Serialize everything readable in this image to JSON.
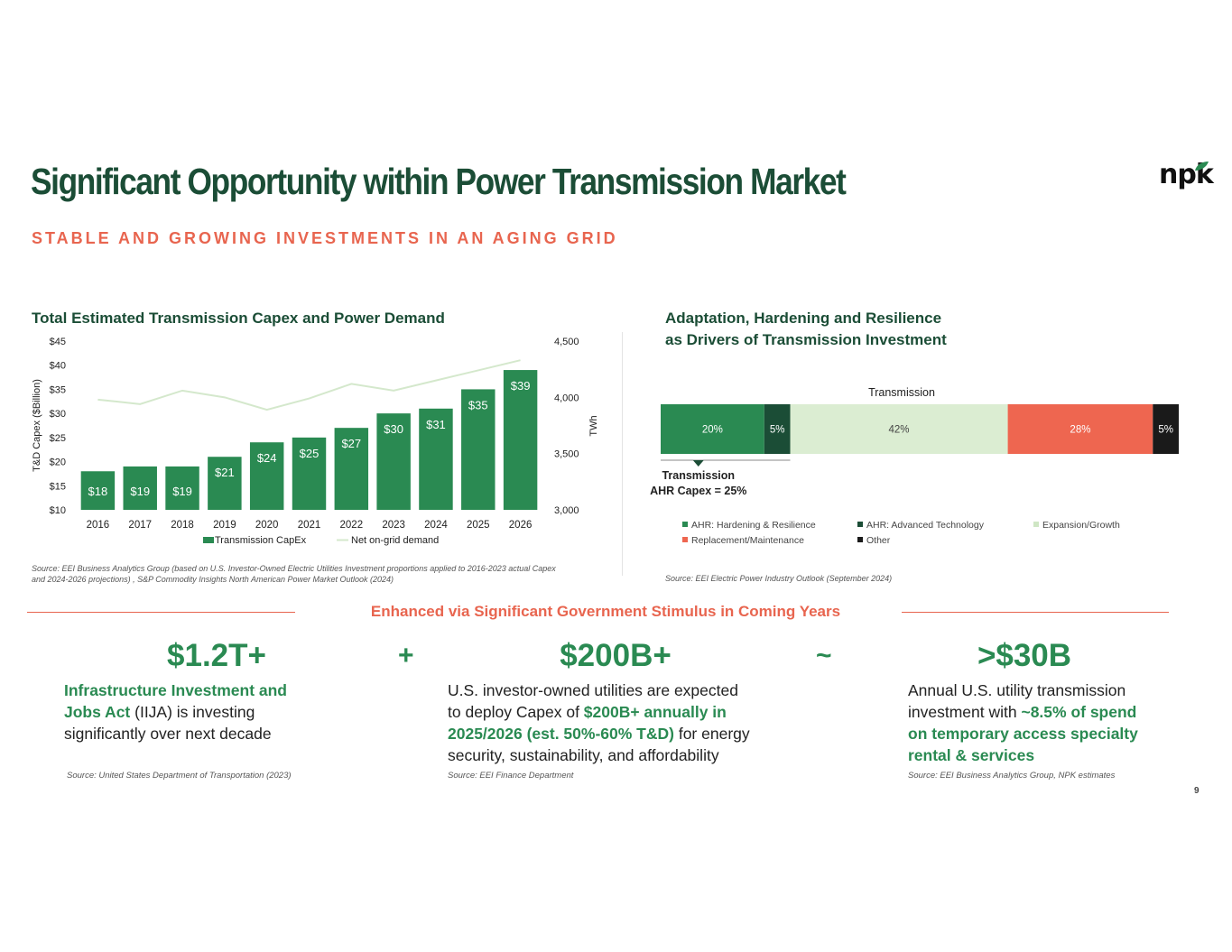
{
  "header": {
    "title": "Significant Opportunity within Power Transmission Market",
    "subtitle": "STABLE AND GROWING INVESTMENTS IN AN AGING GRID",
    "logo_text": "npk"
  },
  "left_chart": {
    "title": "Total Estimated Transmission Capex and Power Demand",
    "source": [
      "Source: EEI Business Analytics Group (based on U.S. Investor-Owned Electric Utilities Investment proportions applied to 2016-2023 actual Capex",
      "and 2024-2026 projections) , S&P Commodity Insights North American Power Market Outlook (2024)"
    ]
  },
  "right_chart": {
    "title_line1": "Adaptation, Hardening and Resilience",
    "title_line2": "as Drivers of Transmission Investment",
    "source": "Source: EEI Electric Power Industry Outlook (September 2024)"
  },
  "chart_data": [
    {
      "type": "bar",
      "title": "Total Estimated Transmission Capex and Power Demand",
      "categories": [
        "2016",
        "2017",
        "2018",
        "2019",
        "2020",
        "2021",
        "2022",
        "2023",
        "2024",
        "2025",
        "2026"
      ],
      "series": [
        {
          "name": "Transmission CapEx",
          "type": "bar",
          "axis": "left",
          "values": [
            18,
            19,
            19,
            21,
            24,
            25,
            27,
            30,
            31,
            35,
            39
          ],
          "labels": [
            "$18",
            "$19",
            "$19",
            "$21",
            "$24",
            "$25",
            "$27",
            "$30",
            "$31",
            "$35",
            "$39"
          ],
          "color": "#2a8a52"
        },
        {
          "name": "Net on-grid demand",
          "type": "line",
          "axis": "right",
          "values": [
            3980,
            3940,
            4060,
            4000,
            3890,
            3990,
            4120,
            4060,
            4150,
            4240,
            4330
          ],
          "color": "#d4e8cc"
        }
      ],
      "ylabel": "T&D Capex ($Billion)",
      "ylim": [
        10,
        45
      ],
      "yticks": [
        "$10",
        "$15",
        "$20",
        "$25",
        "$30",
        "$35",
        "$40",
        "$45"
      ],
      "y2label": "TWh",
      "y2lim": [
        3000,
        4500
      ],
      "y2ticks": [
        "3,000",
        "3,500",
        "4,000",
        "4,500"
      ],
      "legend_position": "bottom",
      "grid": false
    },
    {
      "type": "bar",
      "subtype": "stacked-100",
      "title": "Adaptation, Hardening and Resilience as Drivers of Transmission Investment",
      "categories": [
        "Transmission"
      ],
      "series": [
        {
          "name": "AHR: Hardening & Resilience",
          "values": [
            20
          ],
          "label": "20%",
          "color": "#2a8a52"
        },
        {
          "name": "AHR: Advanced Technology",
          "values": [
            5
          ],
          "label": "5%",
          "color": "#1b4d36"
        },
        {
          "name": "Expansion/Growth",
          "values": [
            42
          ],
          "label": "42%",
          "color": "#dbedd2"
        },
        {
          "name": "Replacement/Maintenance",
          "values": [
            28
          ],
          "label": "28%",
          "color": "#ee6650"
        },
        {
          "name": "Other",
          "values": [
            5
          ],
          "label": "5%",
          "color": "#1a1a1a"
        }
      ],
      "annotation": {
        "line1": "Transmission",
        "line2": "AHR Capex = 25%"
      },
      "legend_position": "bottom"
    }
  ],
  "stimulus": {
    "title": "Enhanced via Significant Government Stimulus in Coming Years",
    "plus": "+",
    "tilde": "~",
    "items": [
      {
        "value": "$1.2T+",
        "lines": [
          [
            {
              "t": "Infrastructure Investment and",
              "hl": true
            }
          ],
          [
            {
              "t": "Jobs Act",
              "hl": true
            },
            {
              "t": " (IIJA) is investing",
              "hl": false
            }
          ],
          [
            {
              "t": "significantly over next decade",
              "hl": false
            }
          ]
        ],
        "source": "Source: United States Department of Transportation (2023)"
      },
      {
        "value": "$200B+",
        "lines": [
          [
            {
              "t": "U.S. investor-owned utilities are expected",
              "hl": false
            }
          ],
          [
            {
              "t": "to deploy Capex of ",
              "hl": false
            },
            {
              "t": "$200B+ annually in",
              "hl": true
            }
          ],
          [
            {
              "t": "2025/2026 (est. 50%-60% T&D)",
              "hl": true
            },
            {
              "t": " for energy",
              "hl": false
            }
          ],
          [
            {
              "t": "security, sustainability, and affordability",
              "hl": false
            }
          ]
        ],
        "source": "Source: EEI Finance Department"
      },
      {
        "value": ">$30B",
        "lines": [
          [
            {
              "t": "Annual U.S. utility transmission",
              "hl": false
            }
          ],
          [
            {
              "t": "investment with ",
              "hl": false
            },
            {
              "t": "~8.5% of spend",
              "hl": true
            }
          ],
          [
            {
              "t": "on temporary access specialty",
              "hl": true
            }
          ],
          [
            {
              "t": "rental & services",
              "hl": true
            }
          ]
        ],
        "source": "Source: EEI Business Analytics Group, NPK estimates"
      }
    ]
  },
  "footer": {
    "page_number": "9"
  }
}
